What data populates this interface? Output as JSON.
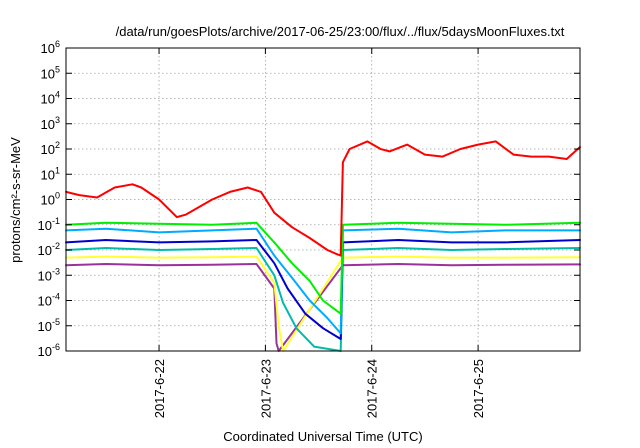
{
  "chart_data": {
    "type": "line",
    "title": "/data/run/goesPlots/archive/2017-06-25/23:00/flux/../flux/5daysMoonFluxes.txt",
    "xlabel": "Coordinated Universal Time (UTC)",
    "ylabel": "protons/cm²-s-sr-MeV",
    "y_scale": "log",
    "ylim": [
      1e-06,
      1000000.0
    ],
    "y_ticks": [
      {
        "value": 1e-06,
        "base": "10",
        "exp": "-6"
      },
      {
        "value": 1e-05,
        "base": "10",
        "exp": "-5"
      },
      {
        "value": 0.0001,
        "base": "10",
        "exp": "-4"
      },
      {
        "value": 0.001,
        "base": "10",
        "exp": "-3"
      },
      {
        "value": 0.01,
        "base": "10",
        "exp": "-2"
      },
      {
        "value": 0.1,
        "base": "10",
        "exp": "-1"
      },
      {
        "value": 1,
        "base": "10",
        "exp": "0"
      },
      {
        "value": 10.0,
        "base": "10",
        "exp": "1"
      },
      {
        "value": 100.0,
        "base": "10",
        "exp": "2"
      },
      {
        "value": 1000.0,
        "base": "10",
        "exp": "3"
      },
      {
        "value": 10000.0,
        "base": "10",
        "exp": "4"
      },
      {
        "value": 100000.0,
        "base": "10",
        "exp": "5"
      },
      {
        "value": 1000000.0,
        "base": "10",
        "exp": "6"
      }
    ],
    "xlim": [
      "2017-06-21 03:00",
      "2017-06-25 23:00"
    ],
    "x_ticks": [
      "2017-6-22",
      "2017-6-23",
      "2017-6-24",
      "2017-6-25"
    ],
    "grid": true,
    "legend": "none",
    "series": [
      {
        "color": "#ff0000",
        "x": [
          "2017-06-21 03:00",
          "2017-06-21 06:00",
          "2017-06-21 10:00",
          "2017-06-21 14:00",
          "2017-06-21 18:00",
          "2017-06-21 20:00",
          "2017-06-22 00:00",
          "2017-06-22 04:00",
          "2017-06-22 06:00",
          "2017-06-22 09:00",
          "2017-06-22 12:00",
          "2017-06-22 16:00",
          "2017-06-22 20:00",
          "2017-06-22 23:00",
          "2017-06-23 02:00",
          "2017-06-23 06:00",
          "2017-06-23 10:00",
          "2017-06-23 14:00",
          "2017-06-23 16:00",
          "2017-06-23 17:00",
          "2017-06-23 17:30",
          "2017-06-23 19:00",
          "2017-06-23 23:00",
          "2017-06-24 02:00",
          "2017-06-24 04:00",
          "2017-06-24 08:00",
          "2017-06-24 12:00",
          "2017-06-24 16:00",
          "2017-06-24 20:00",
          "2017-06-25 00:00",
          "2017-06-25 04:00",
          "2017-06-25 08:00",
          "2017-06-25 12:00",
          "2017-06-25 16:00",
          "2017-06-25 20:00",
          "2017-06-25 23:00"
        ],
        "y": [
          2,
          1.5,
          1.2,
          3,
          4,
          3,
          1,
          0.2,
          0.25,
          0.5,
          1,
          2,
          3,
          2,
          0.3,
          0.08,
          0.03,
          0.01,
          0.007,
          0.006,
          30,
          100,
          200,
          100,
          80,
          150,
          60,
          50,
          100,
          150,
          200,
          60,
          50,
          50,
          40,
          120
        ]
      },
      {
        "color": "#00ee00",
        "x": [
          "2017-06-21 03:00",
          "2017-06-21 12:00",
          "2017-06-22 00:00",
          "2017-06-22 12:00",
          "2017-06-22 22:00",
          "2017-06-23 02:00",
          "2017-06-23 06:00",
          "2017-06-23 10:00",
          "2017-06-23 13:00",
          "2017-06-23 17:00",
          "2017-06-23 17:30",
          "2017-06-24 06:00",
          "2017-06-24 18:00",
          "2017-06-25 06:00",
          "2017-06-25 23:00"
        ],
        "y": [
          0.1,
          0.12,
          0.11,
          0.1,
          0.12,
          0.02,
          0.003,
          0.0006,
          0.0001,
          3e-05,
          0.1,
          0.12,
          0.11,
          0.1,
          0.12
        ]
      },
      {
        "color": "#00aaff",
        "x": [
          "2017-06-21 03:00",
          "2017-06-21 12:00",
          "2017-06-22 00:00",
          "2017-06-22 12:00",
          "2017-06-22 22:00",
          "2017-06-23 02:00",
          "2017-06-23 06:00",
          "2017-06-23 10:00",
          "2017-06-23 14:00",
          "2017-06-23 17:00",
          "2017-06-23 17:30",
          "2017-06-24 06:00",
          "2017-06-24 18:00",
          "2017-06-25 06:00",
          "2017-06-25 23:00"
        ],
        "y": [
          0.06,
          0.07,
          0.05,
          0.06,
          0.07,
          0.006,
          0.0008,
          0.0001,
          2e-05,
          5e-06,
          0.06,
          0.07,
          0.05,
          0.06,
          0.06
        ]
      },
      {
        "color": "#0000cc",
        "x": [
          "2017-06-21 03:00",
          "2017-06-21 12:00",
          "2017-06-22 00:00",
          "2017-06-22 12:00",
          "2017-06-22 22:00",
          "2017-06-23 02:00",
          "2017-06-23 05:00",
          "2017-06-23 09:00",
          "2017-06-23 13:00",
          "2017-06-23 17:00",
          "2017-06-23 17:30",
          "2017-06-24 06:00",
          "2017-06-24 18:00",
          "2017-06-25 06:00",
          "2017-06-25 23:00"
        ],
        "y": [
          0.02,
          0.025,
          0.02,
          0.022,
          0.025,
          0.003,
          0.0003,
          3e-05,
          8e-06,
          3e-06,
          0.02,
          0.025,
          0.02,
          0.02,
          0.025
        ]
      },
      {
        "color": "#00bbaa",
        "x": [
          "2017-06-21 03:00",
          "2017-06-21 12:00",
          "2017-06-22 00:00",
          "2017-06-22 12:00",
          "2017-06-22 22:00",
          "2017-06-23 02:00",
          "2017-06-23 04:00",
          "2017-06-23 07:00",
          "2017-06-23 11:00",
          "2017-06-23 17:00",
          "2017-06-23 17:30",
          "2017-06-24 06:00",
          "2017-06-24 18:00",
          "2017-06-25 06:00",
          "2017-06-25 23:00"
        ],
        "y": [
          0.01,
          0.012,
          0.01,
          0.011,
          0.012,
          0.001,
          8e-05,
          8e-06,
          1.5e-06,
          1e-06,
          0.01,
          0.012,
          0.01,
          0.011,
          0.012
        ]
      },
      {
        "color": "#ffff33",
        "x": [
          "2017-06-21 03:00",
          "2017-06-21 12:00",
          "2017-06-22 00:00",
          "2017-06-22 12:00",
          "2017-06-22 22:00",
          "2017-06-23 02:00",
          "2017-06-23 03:00",
          "2017-06-23 04:00",
          "2017-06-23 17:30",
          "2017-06-24 06:00",
          "2017-06-24 18:00",
          "2017-06-25 06:00",
          "2017-06-25 23:00"
        ],
        "y": [
          0.005,
          0.0055,
          0.005,
          0.0052,
          0.0055,
          0.0005,
          1e-05,
          1e-06,
          0.005,
          0.0055,
          0.005,
          0.005,
          0.0052
        ]
      },
      {
        "color": "#993399",
        "x": [
          "2017-06-21 03:00",
          "2017-06-21 12:00",
          "2017-06-22 00:00",
          "2017-06-22 12:00",
          "2017-06-22 22:00",
          "2017-06-23 02:00",
          "2017-06-23 02:30",
          "2017-06-23 03:00",
          "2017-06-23 17:30",
          "2017-06-24 06:00",
          "2017-06-24 18:00",
          "2017-06-25 06:00",
          "2017-06-25 23:00"
        ],
        "y": [
          0.0025,
          0.0028,
          0.0025,
          0.0026,
          0.0028,
          0.0003,
          2e-06,
          1e-06,
          0.0025,
          0.0028,
          0.0025,
          0.0026,
          0.0027
        ]
      }
    ]
  }
}
